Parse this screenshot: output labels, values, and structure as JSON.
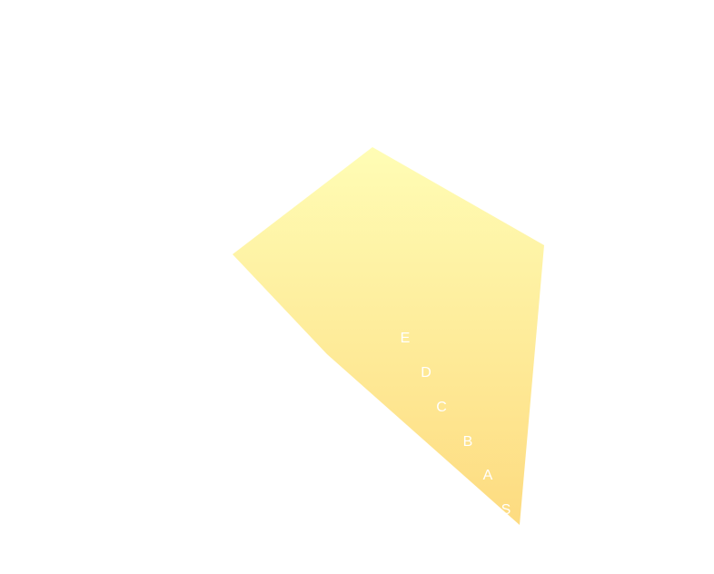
{
  "chart_data": {
    "type": "radar",
    "title": "",
    "scale": "ordinal",
    "levels": [
      "S",
      "A",
      "B",
      "C",
      "D",
      "E"
    ],
    "axes_count": 5,
    "values": [
      5,
      3.8,
      4.1,
      5.2,
      3
    ],
    "fill_gradient": [
      "#fffdb5",
      "#fddb80"
    ],
    "label_color": "#ffffff",
    "grid": false,
    "legend": false
  }
}
